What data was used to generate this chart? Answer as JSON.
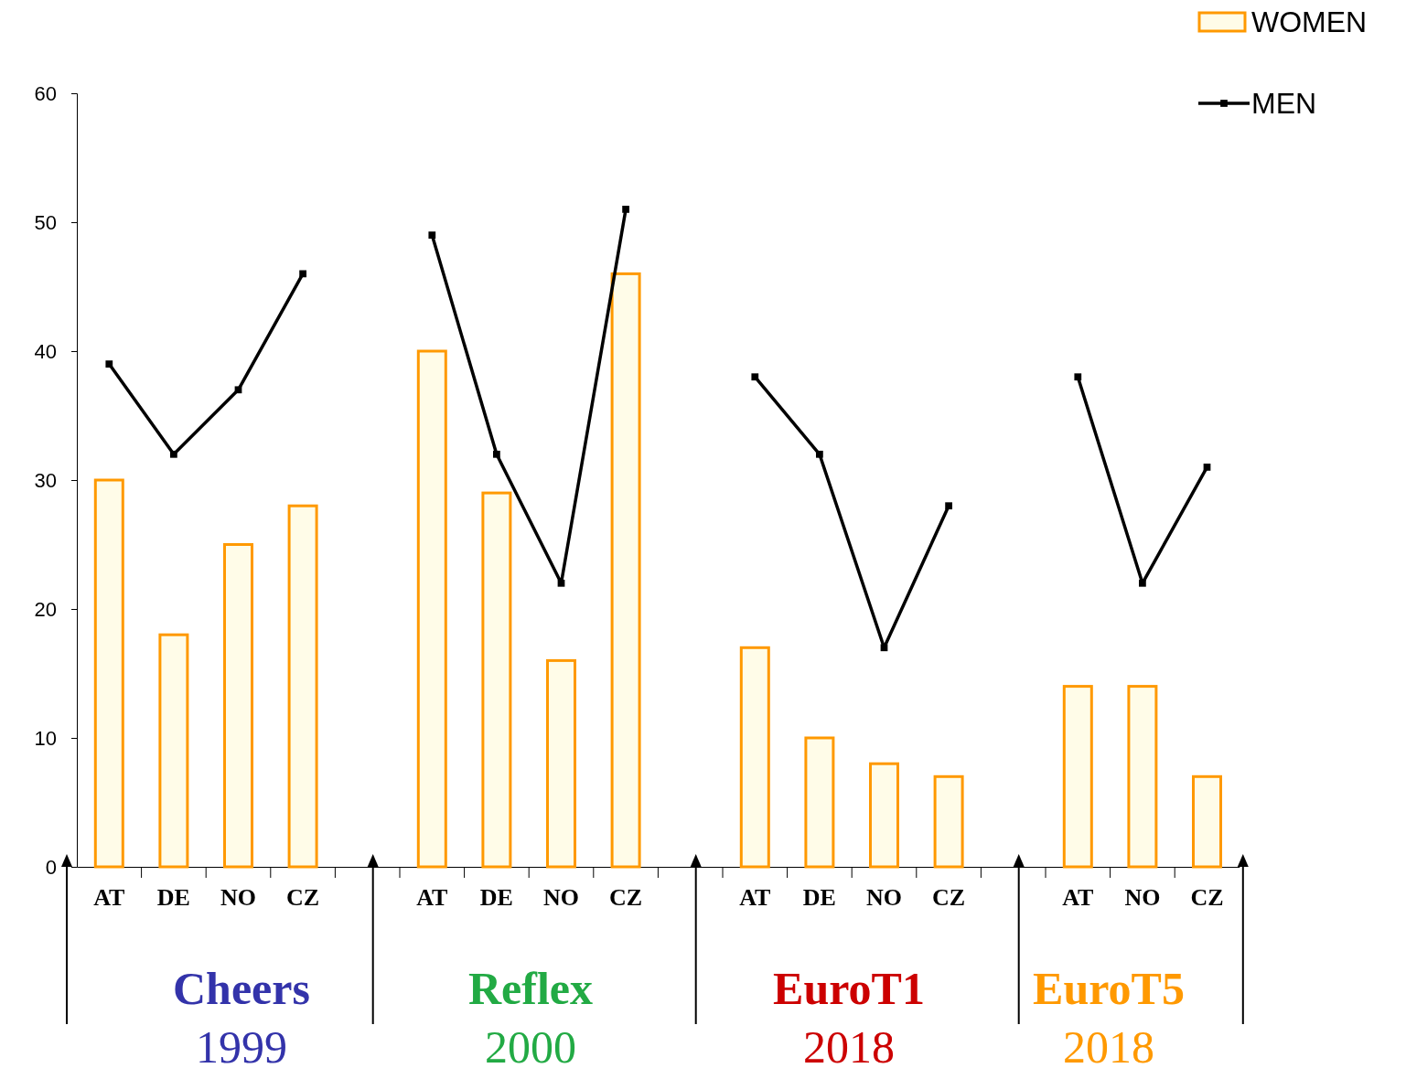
{
  "chart_data": {
    "type": "bar",
    "categories": [
      "AT",
      "DE",
      "NO",
      "CZ",
      null,
      "AT",
      "DE",
      "NO",
      "CZ",
      null,
      "AT",
      "DE",
      "NO",
      "CZ",
      null,
      "AT",
      "NO",
      "CZ"
    ],
    "series": [
      {
        "name": "WOMEN",
        "color": "#ff9900",
        "values": [
          30,
          18,
          25,
          28,
          null,
          40,
          29,
          16,
          46,
          null,
          17,
          10,
          8,
          7,
          null,
          14,
          14,
          7
        ]
      },
      {
        "name": "MEN",
        "type": "line",
        "color": "#000000",
        "marker": "square",
        "values": [
          39,
          32,
          37,
          46,
          null,
          49,
          32,
          22,
          51,
          null,
          38,
          32,
          17,
          28,
          null,
          38,
          22,
          31
        ]
      }
    ],
    "ylim": [
      0,
      60
    ],
    "yticks": [
      0,
      10,
      20,
      30,
      40,
      50,
      60
    ],
    "legend": "top right",
    "grid": false,
    "annotations": [
      "Cheers",
      "1999",
      "Reflex",
      "2000",
      "EuroT1",
      "2018",
      "EuroT5",
      "2018"
    ]
  }
}
